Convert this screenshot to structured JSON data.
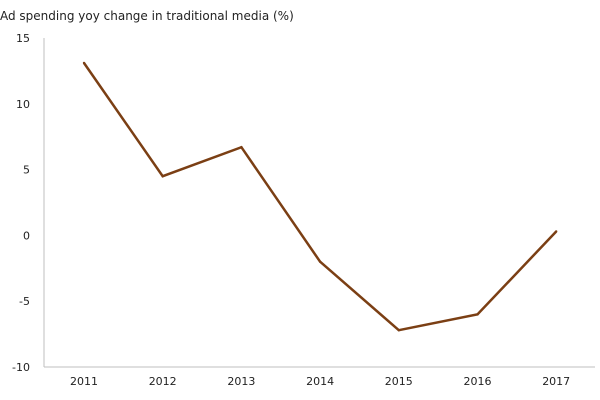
{
  "chart_data": {
    "type": "line",
    "title": "",
    "ylabel": "Ad spending yoy change in traditional media (%)",
    "xlabel": "",
    "categories": [
      "2011",
      "2012",
      "2013",
      "2014",
      "2015",
      "2016",
      "2017"
    ],
    "series": [
      {
        "values": [
          13.1,
          4.5,
          6.7,
          -2.0,
          -7.2,
          -6.0,
          0.3
        ]
      }
    ],
    "ylim": [
      -10,
      15
    ],
    "yticks": [
      15,
      10,
      5,
      0,
      -5,
      -10
    ],
    "grid": false,
    "legend": "none",
    "colors": {
      "line": "#7B3F14",
      "axis": "#BFBFBF",
      "text": "#222222"
    }
  }
}
